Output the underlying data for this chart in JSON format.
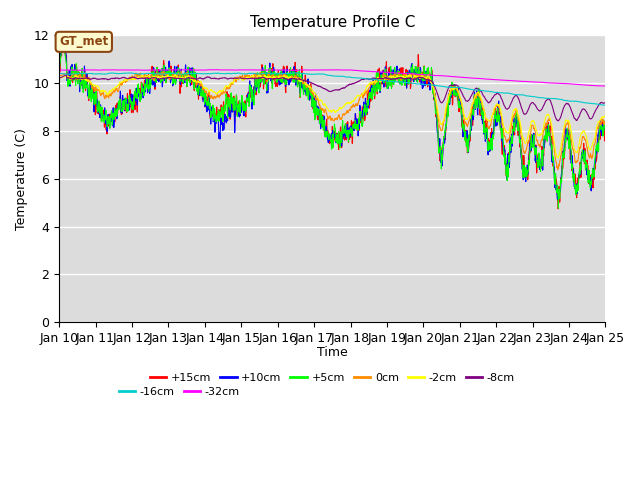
{
  "title": "Temperature Profile C",
  "xlabel": "Time",
  "ylabel": "Temperature (C)",
  "ylim": [
    0,
    12
  ],
  "series": [
    {
      "label": "+15cm",
      "color": "#FF0000"
    },
    {
      "label": "+10cm",
      "color": "#0000FF"
    },
    {
      "label": "+5cm",
      "color": "#00FF00"
    },
    {
      "label": "0cm",
      "color": "#FF8C00"
    },
    {
      "label": "-2cm",
      "color": "#FFFF00"
    },
    {
      "label": "-8cm",
      "color": "#800080"
    },
    {
      "label": "-16cm",
      "color": "#00CCCC"
    },
    {
      "label": "-32cm",
      "color": "#FF00FF"
    }
  ],
  "annotation_text": "GT_met",
  "plot_bg": "#DCDCDC",
  "grid_color": "#FFFFFF",
  "n_pts_per_day": 144,
  "n_days": 15
}
